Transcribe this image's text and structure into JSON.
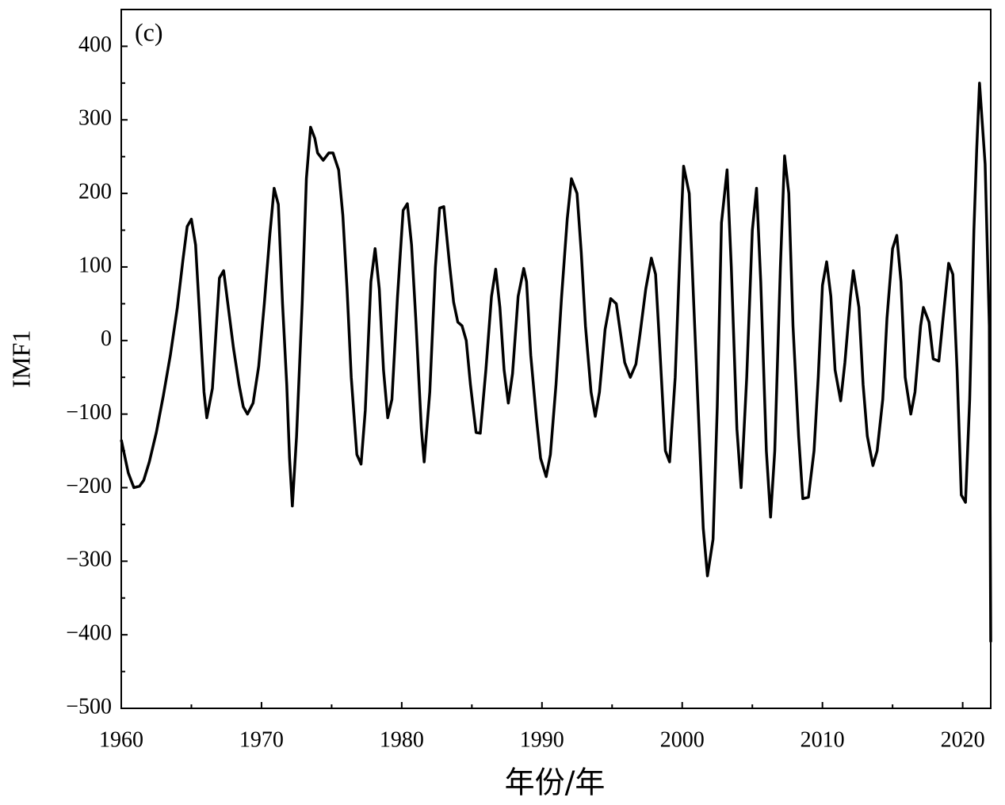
{
  "chart_data": {
    "type": "line",
    "annotation": "(c)",
    "xlabel": "年份/年",
    "ylabel": "IMF1",
    "color": "#000000",
    "xlim": [
      1960,
      2022
    ],
    "ylim": [
      -500,
      450
    ],
    "xticks": [
      1960,
      1970,
      1980,
      1990,
      2000,
      2010,
      2020
    ],
    "xminorticks": [
      1965,
      1975,
      1985,
      1995,
      2005,
      2015
    ],
    "yticks": [
      {
        "value": -500,
        "label": "−500"
      },
      {
        "value": -400,
        "label": "−400"
      },
      {
        "value": -300,
        "label": "−300"
      },
      {
        "value": -200,
        "label": "−200"
      },
      {
        "value": -100,
        "label": "−100"
      },
      0,
      100,
      200,
      300,
      400
    ],
    "yminorticks": [
      -450,
      -350,
      -250,
      -150,
      -50,
      50,
      150,
      250,
      350
    ],
    "x": [
      1960.0,
      1960.5,
      1960.9,
      1961.3,
      1961.6,
      1962.0,
      1962.5,
      1963.0,
      1963.5,
      1964.0,
      1964.4,
      1964.7,
      1965.0,
      1965.3,
      1965.6,
      1965.9,
      1966.1,
      1966.5,
      1967.0,
      1967.3,
      1967.6,
      1968.0,
      1968.4,
      1968.7,
      1969.0,
      1969.4,
      1969.8,
      1970.2,
      1970.6,
      1970.9,
      1971.2,
      1971.5,
      1971.8,
      1972.0,
      1972.2,
      1972.5,
      1972.9,
      1973.2,
      1973.5,
      1973.8,
      1974.0,
      1974.4,
      1974.8,
      1975.1,
      1975.5,
      1975.8,
      1976.1,
      1976.4,
      1976.8,
      1977.1,
      1977.4,
      1977.8,
      1978.1,
      1978.4,
      1978.7,
      1979.0,
      1979.3,
      1979.7,
      1980.1,
      1980.4,
      1980.7,
      1981.0,
      1981.4,
      1981.6,
      1982.0,
      1982.4,
      1982.7,
      1983.0,
      1983.4,
      1983.7,
      1984.0,
      1984.3,
      1984.6,
      1984.9,
      1985.3,
      1985.6,
      1986.0,
      1986.4,
      1986.7,
      1987.0,
      1987.3,
      1987.6,
      1987.9,
      1988.3,
      1988.7,
      1988.9,
      1989.2,
      1989.6,
      1989.9,
      1990.3,
      1990.6,
      1991.0,
      1991.4,
      1991.8,
      1992.1,
      1992.5,
      1992.8,
      1993.1,
      1993.5,
      1993.8,
      1994.1,
      1994.5,
      1994.9,
      1995.3,
      1995.6,
      1995.9,
      1996.3,
      1996.7,
      1997.0,
      1997.4,
      1997.8,
      1998.1,
      1998.4,
      1998.8,
      1999.1,
      1999.5,
      1999.9,
      2000.1,
      2000.5,
      2000.8,
      2001.2,
      2001.5,
      2001.8,
      2002.2,
      2002.5,
      2002.8,
      2003.2,
      2003.5,
      2003.9,
      2004.2,
      2004.6,
      2005.0,
      2005.3,
      2005.6,
      2006.0,
      2006.3,
      2006.6,
      2007.0,
      2007.3,
      2007.6,
      2007.9,
      2008.3,
      2008.6,
      2009.0,
      2009.4,
      2009.7,
      2010.0,
      2010.3,
      2010.6,
      2010.9,
      2011.3,
      2011.6,
      2012.0,
      2012.2,
      2012.6,
      2012.9,
      2013.2,
      2013.6,
      2013.9,
      2014.3,
      2014.6,
      2015.0,
      2015.3,
      2015.6,
      2015.9,
      2016.3,
      2016.6,
      2017.0,
      2017.2,
      2017.6,
      2017.9,
      2018.3,
      2018.6,
      2019.0,
      2019.3,
      2019.6,
      2019.9,
      2020.2,
      2020.5,
      2020.8,
      2021.0,
      2021.2,
      2021.6,
      2021.9,
      2022.0
    ],
    "values": [
      -135,
      -180,
      -200,
      -198,
      -190,
      -165,
      -125,
      -75,
      -20,
      45,
      110,
      155,
      165,
      130,
      30,
      -70,
      -105,
      -65,
      85,
      95,
      50,
      -10,
      -60,
      -90,
      -100,
      -85,
      -35,
      50,
      145,
      207,
      185,
      50,
      -60,
      -160,
      -225,
      -130,
      50,
      220,
      290,
      275,
      255,
      245,
      255,
      255,
      232,
      170,
      70,
      -50,
      -155,
      -168,
      -95,
      80,
      125,
      70,
      -40,
      -105,
      -80,
      60,
      177,
      186,
      130,
      30,
      -120,
      -165,
      -70,
      100,
      180,
      182,
      105,
      52,
      25,
      20,
      0,
      -60,
      -125,
      -126,
      -40,
      60,
      97,
      45,
      -40,
      -85,
      -45,
      60,
      98,
      80,
      -20,
      -105,
      -160,
      -185,
      -155,
      -60,
      60,
      165,
      220,
      200,
      120,
      20,
      -70,
      -103,
      -70,
      15,
      57,
      50,
      10,
      -30,
      -50,
      -32,
      10,
      70,
      112,
      90,
      -10,
      -150,
      -165,
      -50,
      150,
      237,
      200,
      60,
      -120,
      -255,
      -320,
      -270,
      -90,
      160,
      232,
      100,
      -120,
      -200,
      -50,
      150,
      207,
      80,
      -150,
      -240,
      -150,
      100,
      251,
      200,
      20,
      -130,
      -215,
      -213,
      -150,
      -50,
      75,
      107,
      60,
      -40,
      -82,
      -30,
      60,
      95,
      45,
      -60,
      -130,
      -170,
      -150,
      -80,
      30,
      125,
      143,
      80,
      -50,
      -100,
      -70,
      20,
      45,
      25,
      -25,
      -28,
      30,
      105,
      90,
      -40,
      -210,
      -220,
      -80,
      150,
      260,
      350,
      240,
      20,
      -410
    ]
  }
}
